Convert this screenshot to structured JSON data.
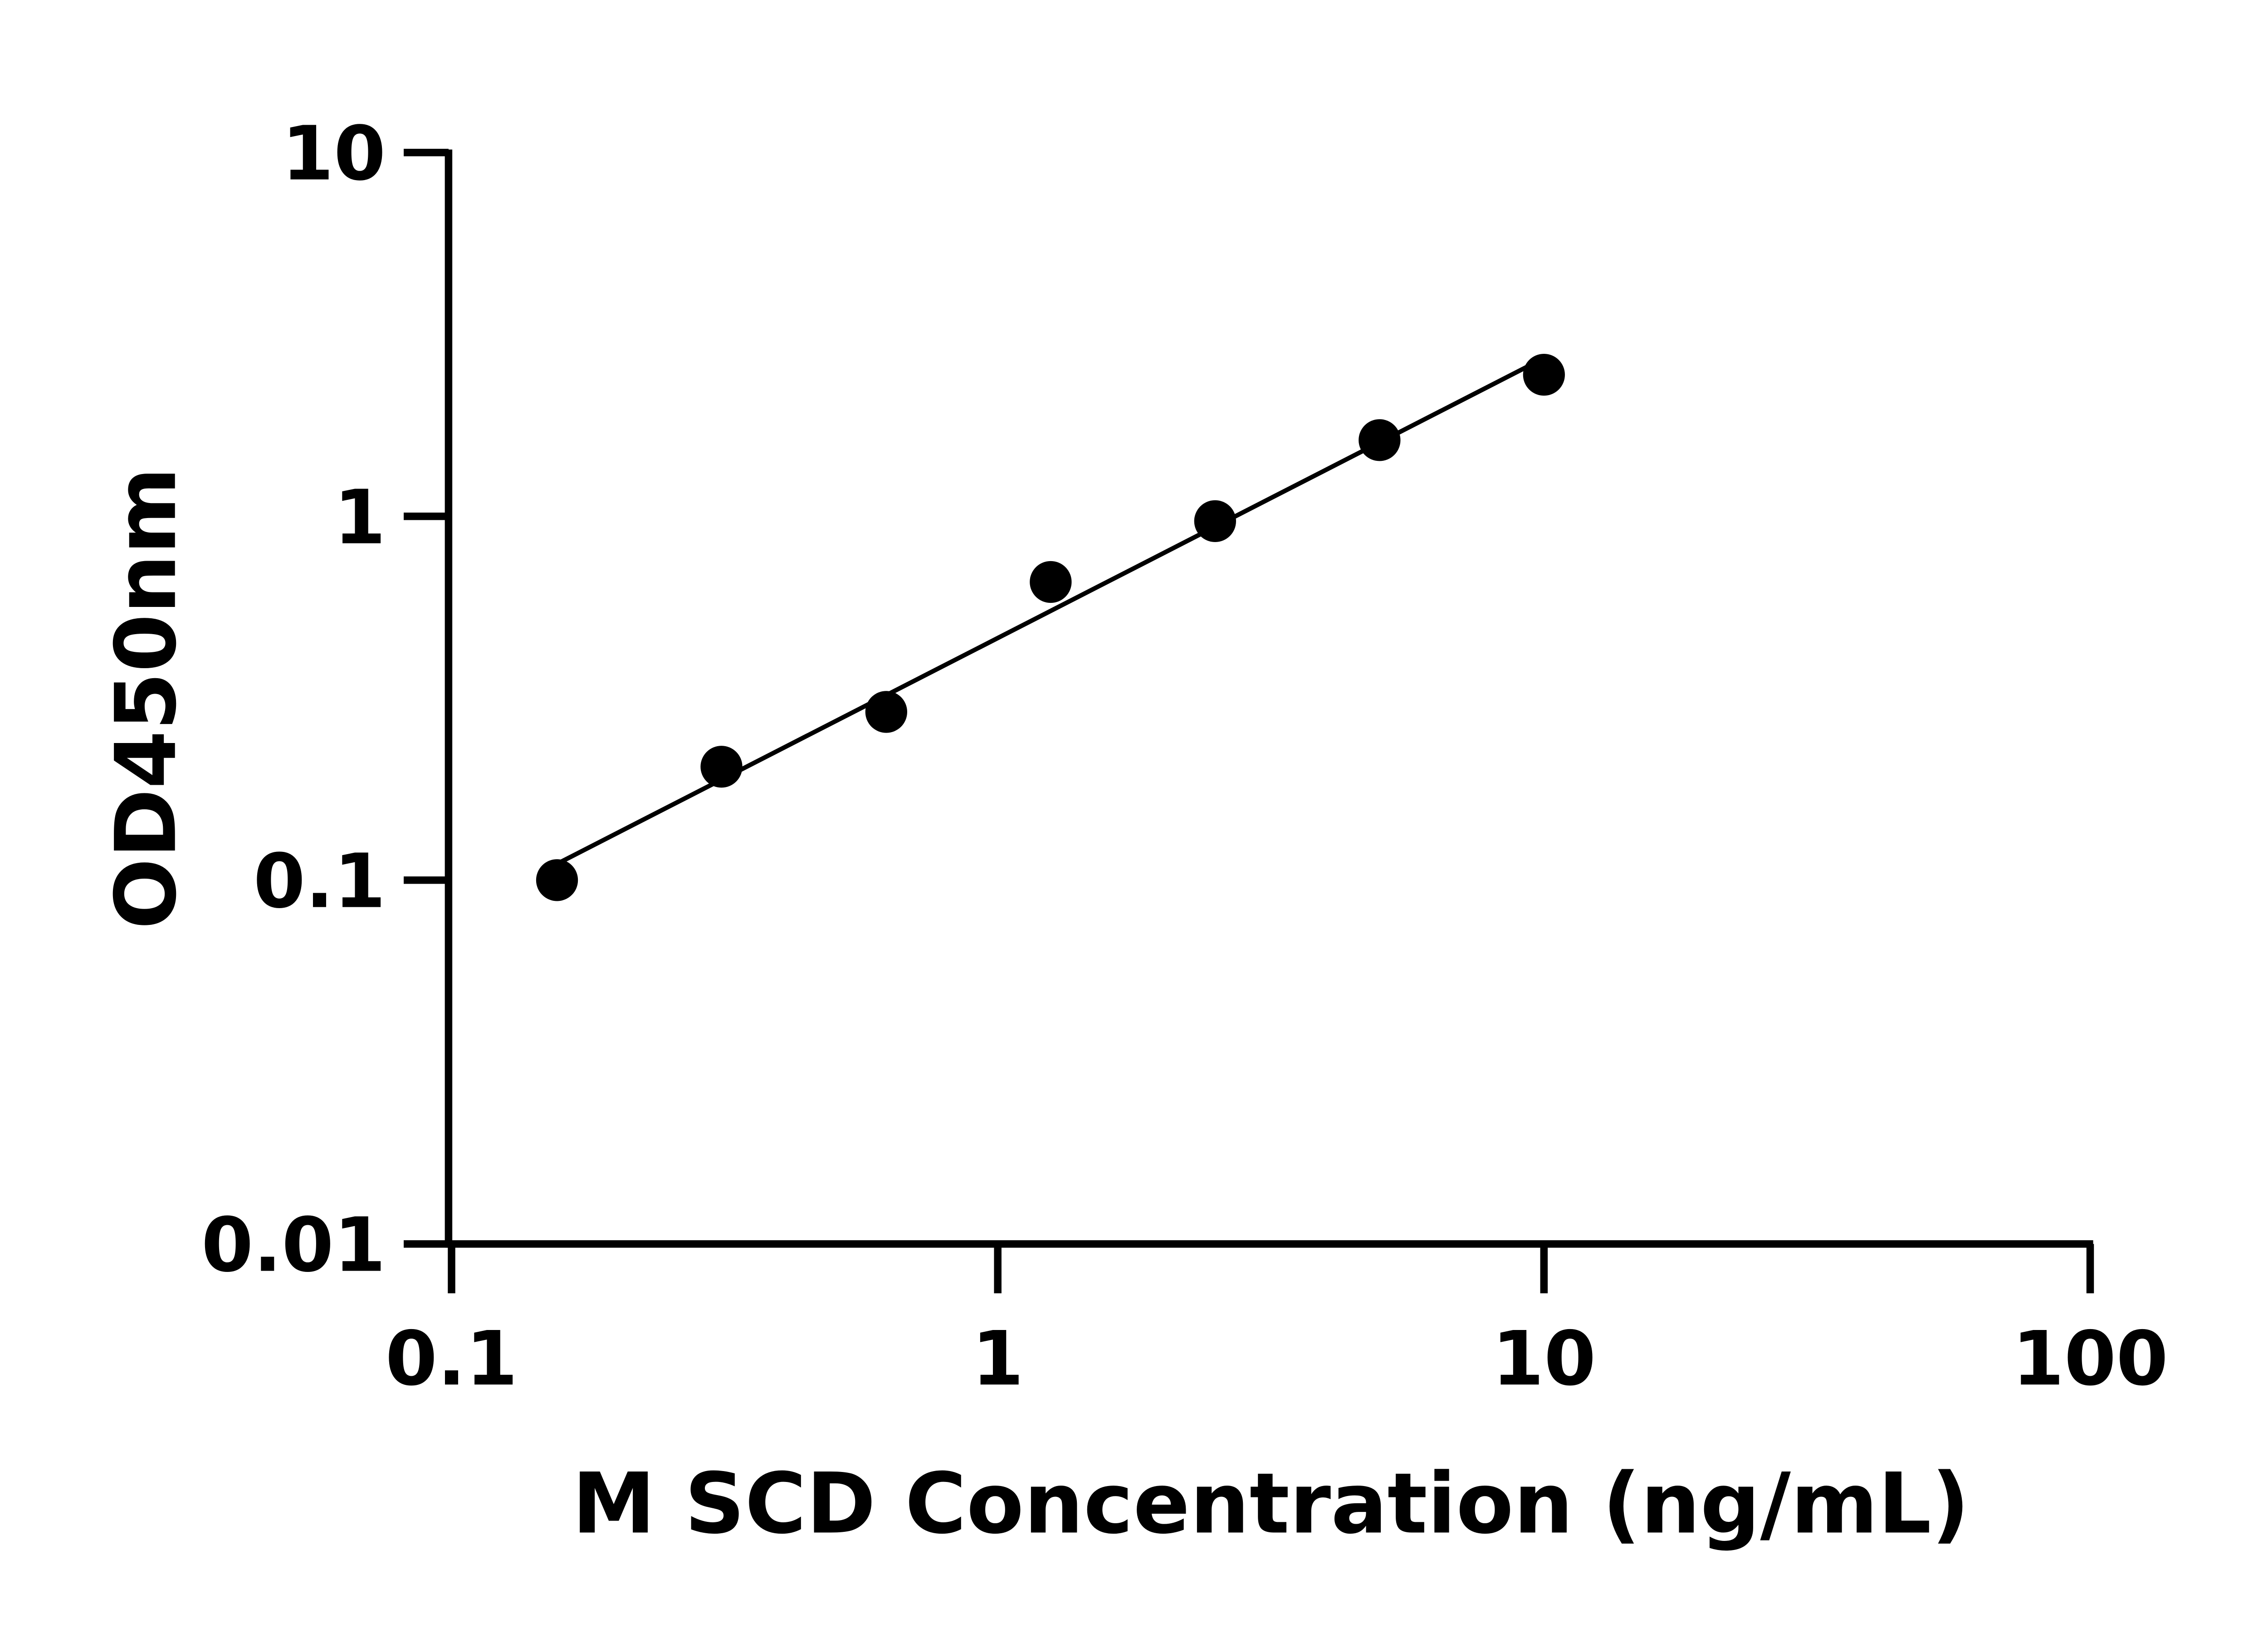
{
  "chart_data": {
    "type": "scatter",
    "title": "",
    "xlabel": "M SCD Concentration (ng/mL)",
    "ylabel": "OD450nm",
    "x_scale": "log",
    "y_scale": "log",
    "xlim": [
      0.1,
      100
    ],
    "ylim": [
      0.01,
      10
    ],
    "x_ticks": [
      0.1,
      1,
      10,
      100
    ],
    "x_tick_labels": [
      "0.1",
      "1",
      "10",
      "100"
    ],
    "y_ticks": [
      0.01,
      0.1,
      1,
      10
    ],
    "y_tick_labels": [
      "0.01",
      "0.1",
      "1",
      "10"
    ],
    "grid": false,
    "fit_line": true,
    "point_color": "#000000",
    "series": [
      {
        "x": [
          0.156,
          0.312,
          0.625,
          1.25,
          2.5,
          5,
          10
        ],
        "y": [
          0.1,
          0.205,
          0.29,
          0.66,
          0.97,
          1.62,
          2.45
        ]
      }
    ]
  }
}
